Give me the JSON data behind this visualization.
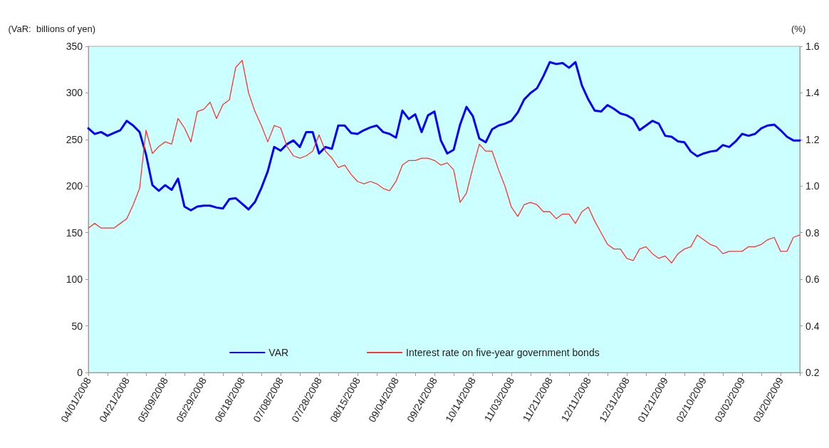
{
  "chart_data": {
    "type": "line",
    "ylabel": "(VaR:  billions of yen)",
    "y2label": "(%)",
    "categories": [
      "04/01/2008",
      null,
      null,
      null,
      null,
      null,
      "04/21/2008",
      null,
      null,
      null,
      null,
      null,
      "05/09/2008",
      null,
      null,
      null,
      null,
      null,
      "05/29/2008",
      null,
      null,
      null,
      null,
      null,
      "06/18/2008",
      null,
      null,
      null,
      null,
      null,
      "07/08/2008",
      null,
      null,
      null,
      null,
      null,
      "07/28/2008",
      null,
      null,
      null,
      null,
      null,
      "08/15/2008",
      null,
      null,
      null,
      null,
      null,
      "09/04/2008",
      null,
      null,
      null,
      null,
      null,
      "09/24/2008",
      null,
      null,
      null,
      null,
      null,
      "10/14/2008",
      null,
      null,
      null,
      null,
      null,
      "11/03/2008",
      null,
      null,
      null,
      null,
      null,
      "11/21/2008",
      null,
      null,
      null,
      null,
      null,
      "12/11/2008",
      null,
      null,
      null,
      null,
      null,
      "12/31/2008",
      null,
      null,
      null,
      null,
      null,
      "01/21/2009",
      null,
      null,
      null,
      null,
      null,
      "02/10/2009",
      null,
      null,
      null,
      null,
      null,
      "03/02/2009",
      null,
      null,
      null,
      null,
      null,
      "03/20/2009",
      null,
      null,
      null
    ],
    "series": [
      {
        "name": "VAR",
        "color": "#0000ff",
        "values": [
          262,
          256,
          258,
          254,
          257,
          260,
          270,
          265,
          258,
          234,
          201,
          195,
          201,
          196,
          208,
          178,
          174,
          178,
          179,
          179,
          177,
          176,
          186,
          187,
          181,
          175,
          183,
          198,
          216,
          242,
          238,
          245,
          249,
          242,
          258,
          258,
          235,
          242,
          240,
          265,
          265,
          257,
          256,
          260,
          263,
          265,
          258,
          256,
          252,
          281,
          272,
          277,
          258,
          276,
          280,
          249,
          235,
          239,
          266,
          285,
          275,
          251,
          247,
          261,
          265,
          267,
          270,
          279,
          293,
          300,
          305,
          318,
          333,
          331,
          332,
          327,
          333,
          308,
          293,
          281,
          280,
          287,
          283,
          278,
          276,
          272,
          260,
          265,
          270,
          267,
          254,
          253,
          248,
          247,
          237,
          232,
          235,
          237,
          238,
          244,
          242,
          248,
          256,
          254,
          256,
          262,
          265,
          266,
          260,
          253,
          249,
          249
        ]
      },
      {
        "name": "Interest rate on five-year government bonds",
        "color": "#ff3333",
        "axis": "y2",
        "values": [
          0.82,
          0.84,
          0.82,
          0.82,
          0.82,
          0.84,
          0.86,
          0.92,
          0.99,
          1.24,
          1.14,
          1.17,
          1.19,
          1.18,
          1.29,
          1.25,
          1.19,
          1.32,
          1.33,
          1.36,
          1.29,
          1.35,
          1.37,
          1.51,
          1.54,
          1.4,
          1.32,
          1.26,
          1.19,
          1.26,
          1.25,
          1.17,
          1.13,
          1.12,
          1.13,
          1.15,
          1.22,
          1.15,
          1.12,
          1.08,
          1.09,
          1.05,
          1.02,
          1.01,
          1.02,
          1.01,
          0.99,
          0.98,
          1.02,
          1.09,
          1.11,
          1.11,
          1.12,
          1.12,
          1.11,
          1.09,
          1.1,
          1.07,
          0.93,
          0.97,
          1.08,
          1.18,
          1.15,
          1.15,
          1.07,
          1.0,
          0.91,
          0.87,
          0.92,
          0.93,
          0.92,
          0.89,
          0.89,
          0.86,
          0.88,
          0.88,
          0.84,
          0.89,
          0.91,
          0.85,
          0.8,
          0.75,
          0.73,
          0.73,
          0.69,
          0.68,
          0.73,
          0.74,
          0.71,
          0.69,
          0.7,
          0.67,
          0.71,
          0.73,
          0.74,
          0.79,
          0.77,
          0.75,
          0.74,
          0.71,
          0.72,
          0.72,
          0.72,
          0.74,
          0.74,
          0.75,
          0.77,
          0.78,
          0.72,
          0.72,
          0.78,
          0.79
        ]
      }
    ],
    "ylim": [
      0,
      350
    ],
    "yticks": [
      0,
      50,
      100,
      150,
      200,
      250,
      300,
      350
    ],
    "y2lim": [
      0.2,
      1.6
    ],
    "y2ticks": [
      0.2,
      0.4,
      0.6,
      0.8,
      {
        "value": 1,
        "label": "1.0"
      },
      1.2,
      1.4,
      1.6
    ],
    "legend": "bottom",
    "grid": false,
    "marker": "none",
    "line_style": "solid"
  }
}
